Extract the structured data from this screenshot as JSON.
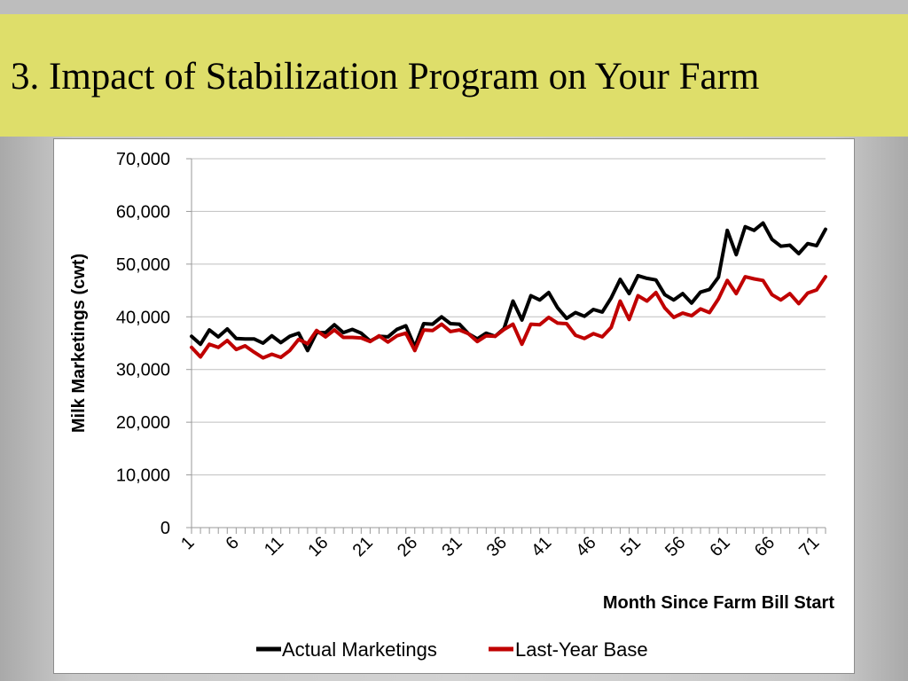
{
  "slide": {
    "title": "3. Impact of Stabilization Program on Your Farm"
  },
  "colors": {
    "title_band": "#dede6a",
    "actual": "#000000",
    "base": "#c00000",
    "grid": "#bfbfbf"
  },
  "chart_data": {
    "type": "line",
    "title": "",
    "xlabel": "Month Since Farm Bill Start",
    "ylabel": "Milk Marketings (cwt)",
    "ylim": [
      0,
      70000
    ],
    "yticks": [
      0,
      10000,
      20000,
      30000,
      40000,
      50000,
      60000,
      70000
    ],
    "ytick_labels": [
      "0",
      "10,000",
      "20,000",
      "30,000",
      "40,000",
      "50,000",
      "60,000",
      "70,000"
    ],
    "xticks": [
      1,
      6,
      11,
      16,
      21,
      26,
      31,
      36,
      41,
      46,
      51,
      56,
      61,
      66,
      71
    ],
    "xtick_labels": [
      "1",
      "6",
      "11",
      "16",
      "21",
      "26",
      "31",
      "36",
      "41",
      "46",
      "51",
      "56",
      "61",
      "66",
      "71"
    ],
    "xrange": [
      1,
      72
    ],
    "grid": "horizontal",
    "legend_position": "bottom",
    "series": [
      {
        "name": "Actual Marketings",
        "color": "#000000",
        "values": [
          36300,
          34800,
          37500,
          36200,
          37700,
          35900,
          35800,
          35800,
          35000,
          36400,
          35100,
          36300,
          36900,
          33600,
          37000,
          37000,
          38500,
          37000,
          37600,
          36900,
          35400,
          36300,
          36200,
          37600,
          38300,
          34300,
          38700,
          38600,
          40000,
          38700,
          38600,
          36800,
          35800,
          36900,
          36300,
          37800,
          43000,
          39400,
          44000,
          43200,
          44600,
          41700,
          39700,
          40800,
          40100,
          41400,
          40900,
          43600,
          47100,
          44400,
          47800,
          47300,
          47000,
          44200,
          43200,
          44400,
          42600,
          44700,
          45200,
          47500,
          56400,
          51800,
          57100,
          56400,
          57800,
          54700,
          53400,
          53600,
          52000,
          53900,
          53500,
          56600
        ]
      },
      {
        "name": "Last-Year Base",
        "color": "#c00000",
        "values": [
          34200,
          32400,
          34800,
          34200,
          35500,
          33800,
          34500,
          33300,
          32200,
          32900,
          32300,
          33600,
          35700,
          34900,
          37400,
          36200,
          37500,
          36100,
          36100,
          36000,
          35300,
          36400,
          35200,
          36400,
          36900,
          33600,
          37500,
          37400,
          38600,
          37200,
          37500,
          36800,
          35300,
          36400,
          36300,
          37600,
          38600,
          34800,
          38600,
          38500,
          39900,
          38800,
          38700,
          36500,
          35900,
          36800,
          36200,
          38000,
          43000,
          39500,
          44000,
          43000,
          44600,
          41700,
          39900,
          40700,
          40200,
          41500,
          40800,
          43400,
          46900,
          44400,
          47600,
          47200,
          46900,
          44200,
          43200,
          44400,
          42500,
          44500,
          45100,
          47600
        ]
      }
    ]
  }
}
